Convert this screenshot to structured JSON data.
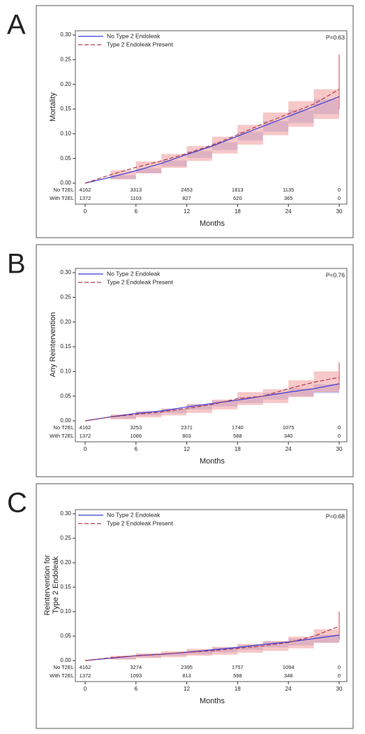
{
  "chart_data": [
    {
      "type": "line",
      "panel_label": "A",
      "ylabel": [
        "Mortality"
      ],
      "xlabel": "Months",
      "annotation": "P=0.63",
      "x": [
        0,
        3,
        6,
        9,
        12,
        15,
        18,
        21,
        24,
        27,
        30
      ],
      "xlim": [
        0,
        30
      ],
      "xticks": [
        0,
        6,
        12,
        18,
        24,
        30
      ],
      "ylim": [
        0,
        0.3
      ],
      "yticks": [
        {
          "value": 0,
          "label": "0.00"
        },
        {
          "value": 0.05,
          "label": "0.05"
        },
        {
          "value": 0.1,
          "label": "0.10"
        },
        {
          "value": 0.15,
          "label": "0.15"
        },
        {
          "value": 0.2,
          "label": "0.20"
        },
        {
          "value": 0.25,
          "label": "0.25"
        },
        {
          "value": 0.3,
          "label": "0.30"
        }
      ],
      "series": [
        {
          "name": "No Type 2 Endoleak",
          "color": "#3b3bd6",
          "band_color": "#9aa4e6",
          "dashed": false,
          "values": [
            0,
            0.012,
            0.025,
            0.04,
            0.058,
            0.075,
            0.095,
            0.115,
            0.135,
            0.155,
            0.175
          ],
          "lower": [
            0,
            0.008,
            0.02,
            0.034,
            0.051,
            0.067,
            0.086,
            0.104,
            0.122,
            0.14,
            0.155
          ],
          "upper": [
            0,
            0.016,
            0.03,
            0.046,
            0.065,
            0.083,
            0.104,
            0.126,
            0.148,
            0.17,
            0.195
          ]
        },
        {
          "name": "Type 2 Endoleak Present",
          "color": "#b03a4a",
          "band_color": "#f09a9a",
          "dashed": true,
          "values": [
            0,
            0.017,
            0.032,
            0.045,
            0.06,
            0.077,
            0.098,
            0.12,
            0.14,
            0.16,
            0.19
          ],
          "lower": [
            0,
            0.008,
            0.02,
            0.031,
            0.045,
            0.06,
            0.078,
            0.097,
            0.114,
            0.13,
            0.15
          ],
          "upper": [
            0,
            0.026,
            0.044,
            0.059,
            0.075,
            0.094,
            0.118,
            0.143,
            0.166,
            0.19,
            0.26
          ]
        }
      ],
      "at_risk": [
        {
          "label": "No T2EL",
          "values": [
            "4162",
            "3313",
            "2453",
            "1813",
            "1135",
            "0"
          ]
        },
        {
          "label": "With T2EL",
          "values": [
            "1372",
            "1103",
            "827",
            "620",
            "365",
            "0"
          ]
        }
      ]
    },
    {
      "type": "line",
      "panel_label": "B",
      "ylabel": [
        "Any Reintervention"
      ],
      "xlabel": "Months",
      "annotation": "P=0.76",
      "x": [
        0,
        3,
        6,
        9,
        12,
        15,
        18,
        21,
        24,
        27,
        30
      ],
      "xlim": [
        0,
        30
      ],
      "xticks": [
        0,
        6,
        12,
        18,
        24,
        30
      ],
      "ylim": [
        0,
        0.3
      ],
      "yticks": [
        {
          "value": 0,
          "label": "0.00"
        },
        {
          "value": 0.05,
          "label": "0.05"
        },
        {
          "value": 0.1,
          "label": "0.10"
        },
        {
          "value": 0.15,
          "label": "0.15"
        },
        {
          "value": 0.2,
          "label": "0.20"
        },
        {
          "value": 0.25,
          "label": "0.25"
        },
        {
          "value": 0.3,
          "label": "0.30"
        }
      ],
      "series": [
        {
          "name": "No Type 2 Endoleak",
          "color": "#3b3bd6",
          "band_color": "#9aa4e6",
          "dashed": false,
          "values": [
            0,
            0.008,
            0.015,
            0.02,
            0.028,
            0.035,
            0.042,
            0.05,
            0.058,
            0.065,
            0.075
          ],
          "lower": [
            0,
            0.005,
            0.011,
            0.016,
            0.023,
            0.029,
            0.036,
            0.043,
            0.05,
            0.056,
            0.065
          ],
          "upper": [
            0,
            0.011,
            0.019,
            0.024,
            0.033,
            0.041,
            0.048,
            0.057,
            0.066,
            0.074,
            0.085
          ]
        },
        {
          "name": "Type 2 Endoleak Present",
          "color": "#b03a4a",
          "band_color": "#f09a9a",
          "dashed": true,
          "values": [
            0,
            0.008,
            0.013,
            0.018,
            0.025,
            0.033,
            0.045,
            0.05,
            0.065,
            0.078,
            0.088
          ],
          "lower": [
            0,
            0.003,
            0.007,
            0.011,
            0.016,
            0.023,
            0.032,
            0.036,
            0.048,
            0.058,
            0.065
          ],
          "upper": [
            0,
            0.013,
            0.019,
            0.025,
            0.034,
            0.043,
            0.058,
            0.064,
            0.082,
            0.1,
            0.118
          ]
        }
      ],
      "at_risk": [
        {
          "label": "No T2EL",
          "values": [
            "4162",
            "3253",
            "2371",
            "1740",
            "1075",
            "0"
          ]
        },
        {
          "label": "With T2EL",
          "values": [
            "1372",
            "1086",
            "803",
            "588",
            "340",
            "0"
          ]
        }
      ]
    },
    {
      "type": "line",
      "panel_label": "C",
      "ylabel": [
        "Reintervention for",
        "Type 2 Endoleak"
      ],
      "xlabel": "Months",
      "annotation": "P=0.68",
      "x": [
        0,
        3,
        6,
        9,
        12,
        15,
        18,
        21,
        24,
        27,
        30
      ],
      "xlim": [
        0,
        30
      ],
      "xticks": [
        0,
        6,
        12,
        18,
        24,
        30
      ],
      "ylim": [
        0,
        0.3
      ],
      "yticks": [
        {
          "value": 0,
          "label": "0.00"
        },
        {
          "value": 0.05,
          "label": "0.05"
        },
        {
          "value": 0.1,
          "label": "0.10"
        },
        {
          "value": 0.15,
          "label": "0.15"
        },
        {
          "value": 0.2,
          "label": "0.20"
        },
        {
          "value": 0.25,
          "label": "0.25"
        },
        {
          "value": 0.3,
          "label": "0.30"
        }
      ],
      "series": [
        {
          "name": "No Type 2 Endoleak",
          "color": "#3b3bd6",
          "band_color": "#9aa4e6",
          "dashed": false,
          "values": [
            0,
            0.005,
            0.01,
            0.013,
            0.017,
            0.022,
            0.027,
            0.033,
            0.038,
            0.045,
            0.052
          ],
          "lower": [
            0,
            0.003,
            0.007,
            0.01,
            0.013,
            0.017,
            0.022,
            0.027,
            0.031,
            0.037,
            0.043
          ],
          "upper": [
            0,
            0.007,
            0.013,
            0.016,
            0.021,
            0.027,
            0.032,
            0.039,
            0.045,
            0.053,
            0.061
          ]
        },
        {
          "name": "Type 2 Endoleak Present",
          "color": "#b03a4a",
          "band_color": "#f09a9a",
          "dashed": true,
          "values": [
            0,
            0.006,
            0.01,
            0.013,
            0.017,
            0.02,
            0.025,
            0.03,
            0.037,
            0.05,
            0.07
          ],
          "lower": [
            0,
            0.002,
            0.005,
            0.007,
            0.01,
            0.012,
            0.016,
            0.02,
            0.025,
            0.036,
            0.05
          ],
          "upper": [
            0,
            0.01,
            0.015,
            0.019,
            0.024,
            0.028,
            0.034,
            0.04,
            0.049,
            0.064,
            0.1
          ]
        }
      ],
      "at_risk": [
        {
          "label": "No T2EL",
          "values": [
            "4162",
            "3274",
            "2395",
            "1757",
            "1094",
            "0"
          ]
        },
        {
          "label": "With T2EL",
          "values": [
            "1372",
            "1093",
            "813",
            "598",
            "348",
            "0"
          ]
        }
      ]
    }
  ]
}
